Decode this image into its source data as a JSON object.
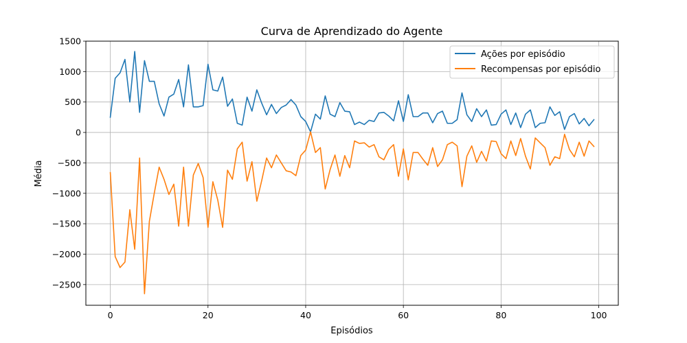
{
  "chart_data": {
    "type": "line",
    "title": "Curva de Aprendizado do Agente",
    "xlabel": "Episódios",
    "ylabel": "Média",
    "xlim": [
      -5,
      104
    ],
    "ylim": [
      -2840,
      1500
    ],
    "xticks": [
      0,
      20,
      40,
      60,
      80,
      100
    ],
    "yticks": [
      -2500,
      -2000,
      -1500,
      -1000,
      -500,
      0,
      500,
      1000,
      1500
    ],
    "grid": true,
    "legend_position": "top-right",
    "x": [
      0,
      1,
      2,
      3,
      4,
      5,
      6,
      7,
      8,
      9,
      10,
      11,
      12,
      13,
      14,
      15,
      16,
      17,
      18,
      19,
      20,
      21,
      22,
      23,
      24,
      25,
      26,
      27,
      28,
      29,
      30,
      31,
      32,
      33,
      34,
      35,
      36,
      37,
      38,
      39,
      40,
      41,
      42,
      43,
      44,
      45,
      46,
      47,
      48,
      49,
      50,
      51,
      52,
      53,
      54,
      55,
      56,
      57,
      58,
      59,
      60,
      61,
      62,
      63,
      64,
      65,
      66,
      67,
      68,
      69,
      70,
      71,
      72,
      73,
      74,
      75,
      76,
      77,
      78,
      79,
      80,
      81,
      82,
      83,
      84,
      85,
      86,
      87,
      88,
      89,
      90,
      91,
      92,
      93,
      94,
      95,
      96,
      97,
      98,
      99
    ],
    "series": [
      {
        "name": "Ações por episódio",
        "color": "#1f77b4",
        "values": [
          250,
          890,
          980,
          1200,
          500,
          1330,
          330,
          1180,
          840,
          840,
          470,
          270,
          580,
          630,
          870,
          420,
          1110,
          420,
          420,
          440,
          1120,
          700,
          680,
          910,
          430,
          550,
          150,
          120,
          580,
          350,
          700,
          480,
          290,
          460,
          310,
          410,
          450,
          540,
          450,
          260,
          180,
          10,
          300,
          220,
          600,
          300,
          260,
          490,
          350,
          340,
          130,
          170,
          130,
          200,
          180,
          320,
          330,
          270,
          190,
          520,
          180,
          620,
          260,
          260,
          320,
          320,
          160,
          310,
          350,
          150,
          150,
          210,
          650,
          290,
          180,
          390,
          260,
          370,
          120,
          130,
          300,
          370,
          130,
          320,
          80,
          300,
          370,
          80,
          150,
          160,
          420,
          280,
          340,
          50,
          260,
          310,
          140,
          230,
          110,
          210
        ]
      },
      {
        "name": "Recompensas por episódio",
        "color": "#ff7f0e",
        "values": [
          -660,
          -2040,
          -2220,
          -2130,
          -1270,
          -1920,
          -420,
          -2650,
          -1460,
          -1000,
          -570,
          -770,
          -1020,
          -850,
          -1540,
          -570,
          -1540,
          -700,
          -510,
          -740,
          -1560,
          -810,
          -1110,
          -1560,
          -620,
          -770,
          -270,
          -160,
          -800,
          -480,
          -1130,
          -790,
          -420,
          -580,
          -370,
          -500,
          -630,
          -650,
          -710,
          -380,
          -290,
          10,
          -330,
          -250,
          -930,
          -610,
          -370,
          -720,
          -380,
          -580,
          -140,
          -180,
          -170,
          -240,
          -200,
          -400,
          -450,
          -280,
          -200,
          -720,
          -270,
          -780,
          -330,
          -330,
          -440,
          -540,
          -250,
          -560,
          -450,
          -200,
          -160,
          -220,
          -890,
          -390,
          -220,
          -490,
          -310,
          -470,
          -140,
          -150,
          -350,
          -430,
          -140,
          -380,
          -100,
          -390,
          -600,
          -90,
          -170,
          -250,
          -540,
          -400,
          -430,
          -30,
          -280,
          -400,
          -160,
          -390,
          -140,
          -230
        ]
      }
    ]
  }
}
